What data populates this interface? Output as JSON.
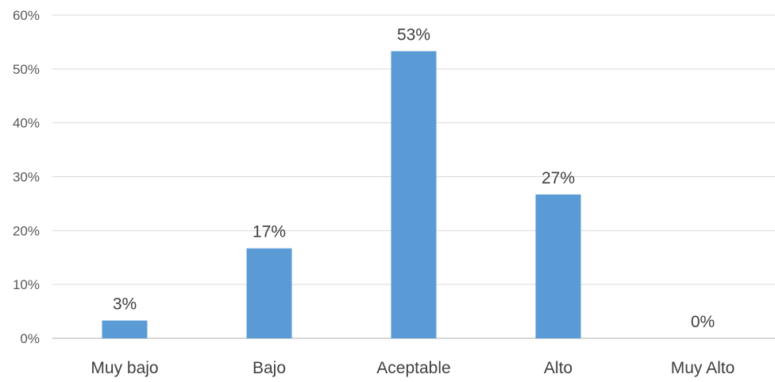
{
  "chart_data": {
    "type": "bar",
    "title": "",
    "xlabel": "",
    "ylabel": "",
    "categories": [
      "Muy bajo",
      "Bajo",
      "Aceptable",
      "Alto",
      "Muy Alto"
    ],
    "values": [
      3.3,
      16.7,
      53.3,
      26.7,
      0
    ],
    "data_labels": [
      "3%",
      "17%",
      "53%",
      "27%",
      "0%"
    ],
    "ylim": [
      0,
      60
    ],
    "yticks": [
      0,
      10,
      20,
      30,
      40,
      50,
      60
    ],
    "ytick_labels": [
      "0%",
      "10%",
      "20%",
      "30%",
      "40%",
      "50%",
      "60%"
    ],
    "grid": true,
    "legend": "none",
    "bar_color": "#5b9bd5"
  }
}
